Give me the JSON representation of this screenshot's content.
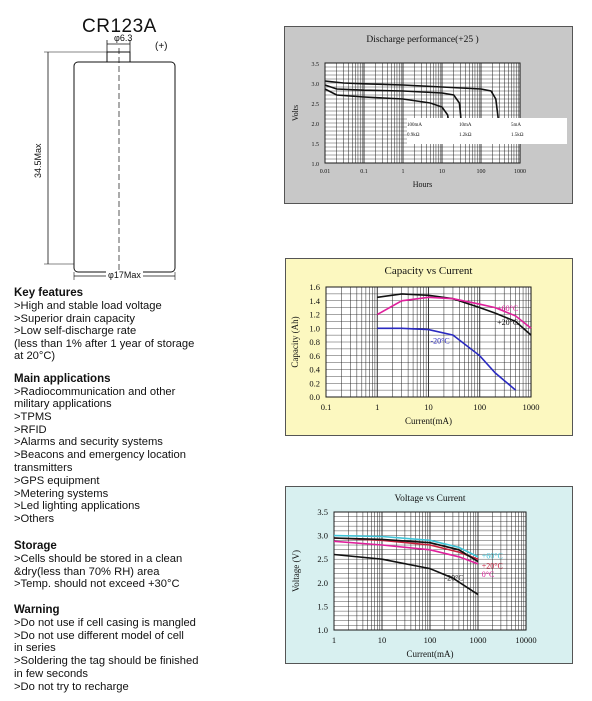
{
  "battery": {
    "model": "CR123A",
    "top_diameter": "φ6.3",
    "polarity": "(+)",
    "height": "34.5Max",
    "diameter": "φ17Max"
  },
  "sections": [
    {
      "title": "Key features",
      "lines": [
        ">High and stable load voltage",
        ">Superior drain capacity",
        ">Low self-discharge rate",
        " (less than 1% after 1 year of storage",
        "  at 20°C)"
      ]
    },
    {
      "title": "Main applications",
      "lines": [
        ">Radiocommunication and other",
        " military applications",
        ">TPMS",
        ">RFID",
        ">Alarms and security systems",
        ">Beacons and emergency location",
        " transmitters",
        ">GPS equipment",
        ">Metering systems",
        ">Led lighting applications",
        ">Others"
      ]
    },
    {
      "title": "Storage",
      "lines": [
        ">Cells should be stored in a clean",
        " &dry(less than 70% RH) area",
        ">Temp. should not exceed +30°C"
      ]
    },
    {
      "title": "Warning",
      "lines": [
        ">Do not use if cell casing is mangled",
        ">Do not use different model of cell",
        " in series",
        ">Soldering the tag should be finished",
        " in few seconds",
        ">Do not try to recharge"
      ]
    }
  ],
  "colors": {
    "black": "#111111",
    "magenta": "#e0209c",
    "blue": "#2a2ac0",
    "red": "#c81e3c",
    "cyan": "#3fc4d8",
    "panel1": "#c8c8c8",
    "panel2": "#fcf8c0",
    "panel3": "#d8f0f0"
  },
  "chart_data": [
    {
      "type": "line",
      "title": "Discharge performance(+25  )",
      "xlabel": "Hours",
      "ylabel": "Volts",
      "x_scale": "log",
      "xlim": [
        0.01,
        1000
      ],
      "ylim": [
        1.0,
        3.5
      ],
      "x_ticks": [
        "0.01",
        "0.1",
        "1",
        "10",
        "100",
        "1000"
      ],
      "y_ticks": [
        "1.0",
        "1.5",
        "2.0",
        "2.5",
        "3.0",
        "3.5"
      ],
      "legend": [
        {
          "current": "100mA",
          "resistance": "0.9kΩ"
        },
        {
          "current": "10mA",
          "resistance": "1.2kΩ"
        },
        {
          "current": "5mA",
          "resistance": "1.5kΩ"
        }
      ],
      "series": [
        {
          "x": [
            0.01,
            0.02,
            0.1,
            1,
            5,
            10,
            14,
            15,
            16
          ],
          "y": [
            2.85,
            2.7,
            2.65,
            2.6,
            2.5,
            2.4,
            2.2,
            1.9,
            1.6
          ]
        },
        {
          "x": [
            0.01,
            0.02,
            0.1,
            1,
            10,
            20,
            28,
            30,
            32
          ],
          "y": [
            2.95,
            2.85,
            2.82,
            2.8,
            2.75,
            2.7,
            2.5,
            2.2,
            1.8
          ]
        },
        {
          "x": [
            0.01,
            0.03,
            0.1,
            1,
            10,
            100,
            180,
            240,
            270,
            300
          ],
          "y": [
            3.05,
            3.0,
            2.98,
            2.95,
            2.9,
            2.85,
            2.8,
            2.6,
            2.2,
            1.8
          ]
        }
      ]
    },
    {
      "type": "line",
      "title": "Capacity vs Current",
      "xlabel": "Current(mA)",
      "ylabel": "Capacity (Ah)",
      "x_scale": "log",
      "xlim": [
        0.1,
        1000
      ],
      "ylim": [
        0.0,
        1.6
      ],
      "x_ticks": [
        "0.1",
        "1",
        "10",
        "100",
        "1000"
      ],
      "y_ticks": [
        "0.0",
        "0.2",
        "0.4",
        "0.6",
        "0.8",
        "1.0",
        "1.2",
        "1.4",
        "1.6"
      ],
      "series": [
        {
          "name": "+20°C",
          "color": "black",
          "x": [
            1,
            3,
            10,
            30,
            100,
            200,
            500,
            1000
          ],
          "y": [
            1.45,
            1.5,
            1.48,
            1.43,
            1.3,
            1.22,
            1.1,
            0.9
          ]
        },
        {
          "name": "+60°C",
          "color": "magenta",
          "x": [
            1,
            3,
            10,
            30,
            100,
            200,
            500,
            1000
          ],
          "y": [
            1.2,
            1.4,
            1.45,
            1.43,
            1.35,
            1.3,
            1.18,
            1.0
          ]
        },
        {
          "name": "-20°C",
          "color": "blue",
          "x": [
            1,
            3,
            10,
            30,
            100,
            200,
            500
          ],
          "y": [
            1.0,
            1.0,
            0.98,
            0.9,
            0.6,
            0.35,
            0.1
          ]
        }
      ]
    },
    {
      "type": "line",
      "title": "Voltage vs Current",
      "xlabel": "Current(mA)",
      "ylabel": "Voltage (V)",
      "x_scale": "log",
      "xlim": [
        1,
        10000
      ],
      "ylim": [
        1.0,
        3.5
      ],
      "x_ticks": [
        "1",
        "10",
        "100",
        "1000",
        "10000"
      ],
      "y_ticks": [
        "1.0",
        "1.5",
        "2.0",
        "2.5",
        "3.0",
        "3.5"
      ],
      "series": [
        {
          "name": "+60°C",
          "color": "cyan",
          "x": [
            1,
            10,
            100,
            400,
            1000
          ],
          "y": [
            3.0,
            2.98,
            2.9,
            2.75,
            2.55
          ]
        },
        {
          "name": "+20°C",
          "color": "red",
          "x": [
            1,
            10,
            100,
            400,
            1000
          ],
          "y": [
            2.95,
            2.9,
            2.8,
            2.65,
            2.5
          ]
        },
        {
          "name": "0°C",
          "color": "magenta",
          "x": [
            1,
            10,
            100,
            400,
            1000
          ],
          "y": [
            2.88,
            2.8,
            2.7,
            2.55,
            2.4
          ]
        },
        {
          "name": "-20°C",
          "color": "black",
          "x": [
            1,
            10,
            100,
            300,
            1000
          ],
          "y": [
            2.6,
            2.5,
            2.3,
            2.1,
            1.75
          ]
        },
        {
          "x": [
            1,
            10,
            100,
            400,
            1000
          ],
          "y": [
            2.95,
            2.92,
            2.85,
            2.7,
            2.45
          ],
          "color": "black"
        }
      ]
    }
  ]
}
